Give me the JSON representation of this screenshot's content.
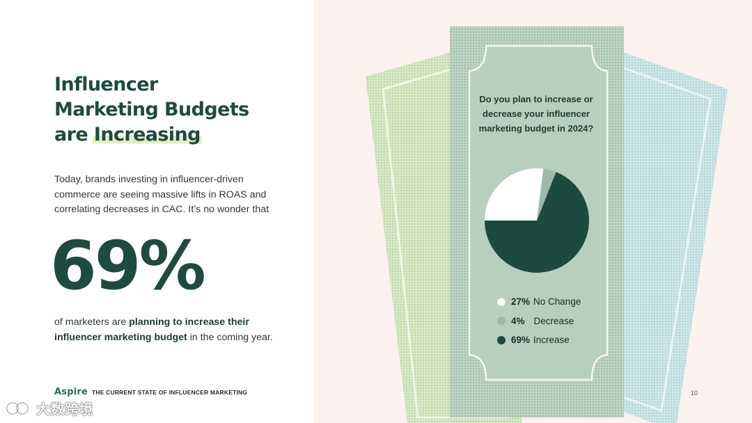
{
  "left": {
    "title_lines": [
      "Influencer",
      "Marketing Budgets",
      "are"
    ],
    "title_highlight": "Increasing",
    "intro": "Today, brands investing in influencer-driven commerce are seeing massive lifts in ROAS and correlating decreases in CAC. It’s no wonder that",
    "big_stat": "69%",
    "outro_pre": "of marketers are ",
    "outro_bold": "planning to increase their influencer marketing budget",
    "outro_post": " in the coming year.",
    "brand": "Aspire",
    "report": "THE CURRENT STATE OF INFLUENCER MARKETING",
    "watermark": "大数跨境"
  },
  "right": {
    "question": "Do you plan to increase or decrease your influencer marketing budget in 2024?",
    "page_number": "10"
  },
  "colors": {
    "dark_green": "#1f4a40",
    "pie_dark": "#1d4a3f",
    "pie_light": "#ffffff",
    "pie_mid": "#9fb8ac",
    "note_front": "#b6cfbe",
    "note_left": "#d2e4bf",
    "note_right": "#c9e4e6",
    "background_right": "#fbf1ee"
  },
  "chart_data": {
    "type": "pie",
    "title": "Do you plan to increase or decrease your influencer marketing budget in 2024?",
    "slices": [
      {
        "label": "No Change",
        "value": 27,
        "value_label": "27%",
        "color": "#ffffff"
      },
      {
        "label": "Decrease",
        "value": 4,
        "value_label": "4%",
        "color": "#9fb8ac"
      },
      {
        "label": "Increase",
        "value": 69,
        "value_label": "69%",
        "color": "#1d4a3f"
      }
    ],
    "legend": "bottom"
  }
}
